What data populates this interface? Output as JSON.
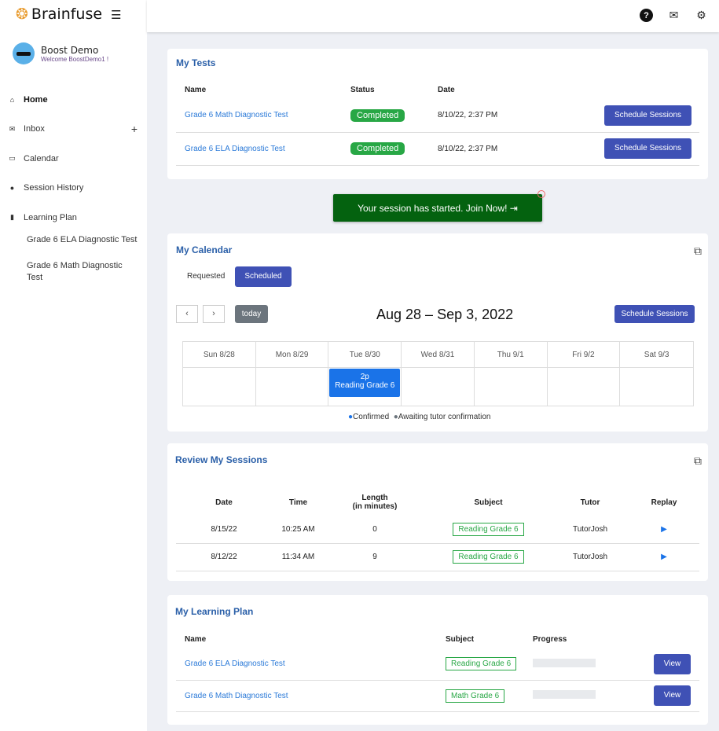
{
  "app": {
    "brand": "Brainfuse",
    "user_name": "Boost Demo",
    "welcome": "Welcome BoostDemo1 !"
  },
  "nav": [
    {
      "label": "Home",
      "icon": "home-icon"
    },
    {
      "label": "Inbox",
      "icon": "mail-icon"
    },
    {
      "label": "Calendar",
      "icon": "calendar-icon"
    },
    {
      "label": "Session History",
      "icon": "history-icon"
    },
    {
      "label": "Learning Plan",
      "icon": "book-icon"
    }
  ],
  "nav_sub": [
    "Grade 6 ELA Diagnostic Test",
    "Grade 6 Math Diagnostic Test"
  ],
  "tests": {
    "title": "My Tests",
    "headers": [
      "Name",
      "Status",
      "Date"
    ],
    "rows": [
      {
        "name": "Grade 6 Math Diagnostic Test",
        "status": "Completed",
        "date": "8/10/22, 2:37 PM",
        "action": "Schedule Sessions"
      },
      {
        "name": "Grade 6 ELA Diagnostic Test",
        "status": "Completed",
        "date": "8/10/22, 2:37 PM",
        "action": "Schedule Sessions"
      }
    ]
  },
  "join": "Your session has started. Join Now!",
  "calendar": {
    "title": "My Calendar",
    "tabs": [
      "Requested",
      "Scheduled"
    ],
    "today": "today",
    "range": "Aug 28 – Sep 3, 2022",
    "schedule": "Schedule Sessions",
    "days": [
      "Sun 8/28",
      "Mon 8/29",
      "Tue 8/30",
      "Wed 8/31",
      "Thu 9/1",
      "Fri 9/2",
      "Sat 9/3"
    ],
    "event": {
      "time": "2p",
      "title": "Reading Grade 6"
    },
    "legend": [
      "Confirmed",
      "Awaiting tutor confirmation"
    ],
    "colors": {
      "confirmed": "#1a73e8",
      "awaiting": "#6c757d"
    }
  },
  "review": {
    "title": "Review My Sessions",
    "headers": [
      "Date",
      "Time",
      "Length\n(in minutes)",
      "Subject",
      "Tutor",
      "Replay"
    ],
    "rows": [
      {
        "date": "8/15/22",
        "time": "10:25 AM",
        "length": "0",
        "subject": "Reading Grade 6",
        "tutor": "TutorJosh"
      },
      {
        "date": "8/12/22",
        "time": "11:34 AM",
        "length": "9",
        "subject": "Reading Grade 6",
        "tutor": "TutorJosh"
      }
    ]
  },
  "plan": {
    "title": "My Learning Plan",
    "headers": [
      "Name",
      "Subject",
      "Progress"
    ],
    "rows": [
      {
        "name": "Grade 6 ELA Diagnostic Test",
        "subject": "Reading Grade 6",
        "progress": 0,
        "action": "View"
      },
      {
        "name": "Grade 6 Math Diagnostic Test",
        "subject": "Math Grade 6",
        "progress": 0,
        "action": "View"
      }
    ]
  }
}
